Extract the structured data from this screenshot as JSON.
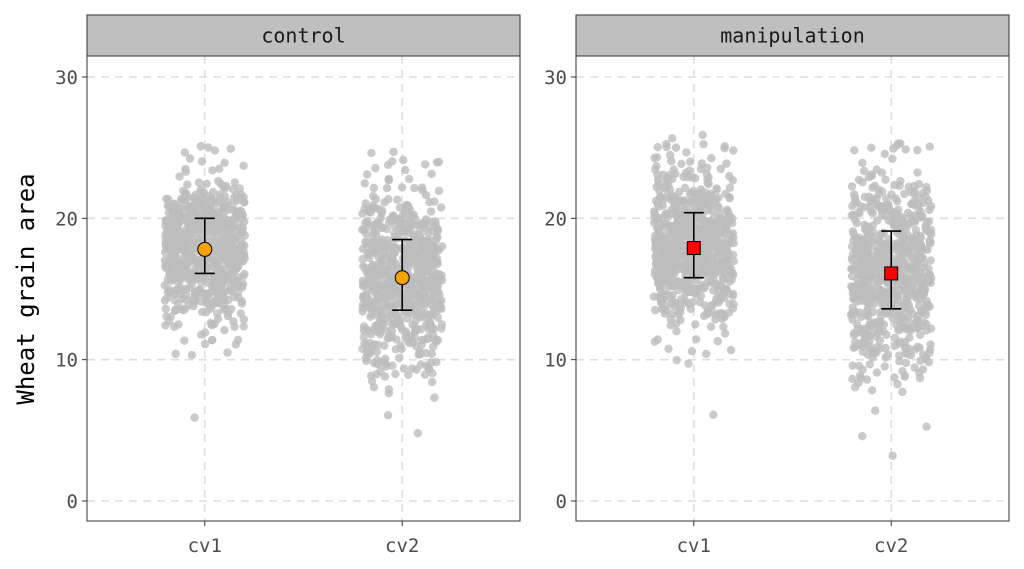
{
  "chart_data": {
    "type": "scatter",
    "ylabel": "Wheat grain area",
    "xlabel": "",
    "ylim": [
      0,
      30
    ],
    "yticks": [
      0,
      10,
      20,
      30
    ],
    "categories": [
      "cv1",
      "cv2"
    ],
    "grid": "dashed major gridlines",
    "panels": [
      {
        "title": "control",
        "summary_marker": "circle",
        "summary_color": "#f5a300",
        "summaries": [
          {
            "x": "cv1",
            "mean": 17.8,
            "lower": 16.1,
            "upper": 20.0
          },
          {
            "x": "cv2",
            "mean": 15.8,
            "lower": 13.5,
            "upper": 18.5
          }
        ],
        "raw_points": [
          {
            "x": "cv1",
            "min": 5.9,
            "max": 25.1,
            "q_low": 11.0,
            "q_high": 22.6
          },
          {
            "x": "cv2",
            "min": 4.8,
            "max": 24.7,
            "q_low": 7.5,
            "q_high": 22.4
          }
        ]
      },
      {
        "title": "manipulation",
        "summary_marker": "square",
        "summary_color": "#ff0000",
        "summaries": [
          {
            "x": "cv1",
            "mean": 17.9,
            "lower": 15.8,
            "upper": 20.4
          },
          {
            "x": "cv2",
            "mean": 16.1,
            "lower": 13.6,
            "upper": 19.1
          }
        ],
        "raw_points": [
          {
            "x": "cv1",
            "min": 6.1,
            "max": 25.9,
            "q_low": 9.5,
            "q_high": 23.8
          },
          {
            "x": "cv2",
            "min": 3.2,
            "max": 25.3,
            "q_low": 6.5,
            "q_high": 23.5
          }
        ]
      }
    ],
    "point_color": "#bdbdbd"
  }
}
